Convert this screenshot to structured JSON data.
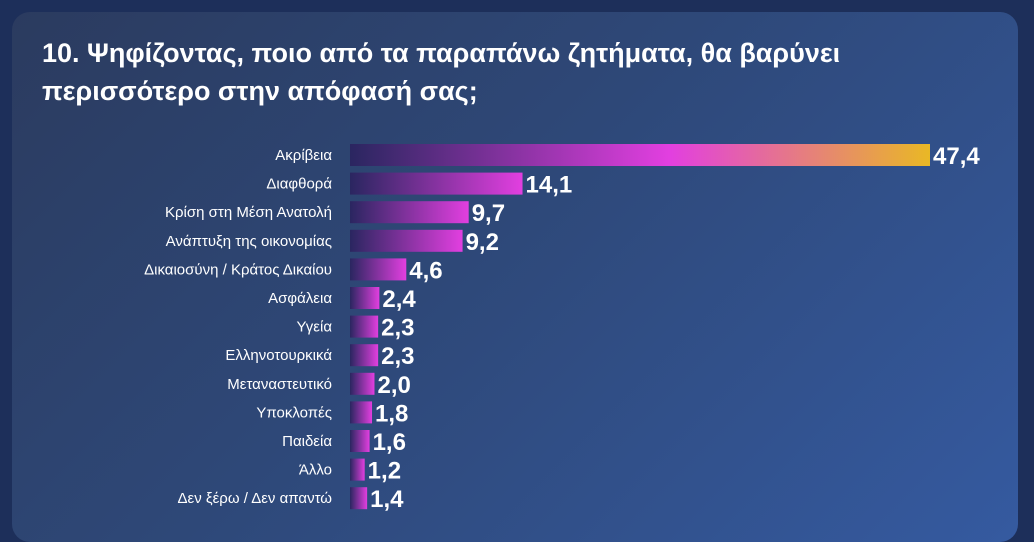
{
  "title": "10. Ψηφίζοντας, ποιο από τα παραπάνω ζητήματα, θα βαρύνει περισσότερο στην απόφασή σας;",
  "colors": {
    "bar_start": "#2a2660",
    "bar_end": "#e23fe0",
    "top_bar_mid": "#e23fe0",
    "top_bar_end": "#e9b825",
    "text": "#ffffff"
  },
  "chart_data": {
    "type": "bar",
    "orientation": "horizontal",
    "title": "10. Ψηφίζοντας, ποιο από τα παραπάνω ζητήματα, θα βαρύνει περισσότερο στην απόφασή σας;",
    "categories": [
      "Ακρίβεια",
      "Διαφθορά",
      "Κρίση στη Μέση Ανατολή",
      "Ανάπτυξη της οικονομίας",
      "Δικαιοσύνη / Κράτος Δικαίου",
      "Ασφάλεια",
      "Υγεία",
      "Ελληνοτουρκικά",
      "Μεταναστευτικό",
      "Υποκλοπές",
      "Παιδεία",
      "Άλλο",
      "Δεν ξέρω / Δεν απαντώ"
    ],
    "values": [
      47.4,
      14.1,
      9.7,
      9.2,
      4.6,
      2.4,
      2.3,
      2.3,
      2.0,
      1.8,
      1.6,
      1.2,
      1.4
    ],
    "value_labels": [
      "47,4",
      "14,1",
      "9,7",
      "9,2",
      "4,6",
      "2,4",
      "2,3",
      "2,3",
      "2,0",
      "1,8",
      "1,6",
      "1,2",
      "1,4"
    ],
    "xlim": [
      0,
      47.4
    ],
    "grid": false,
    "legend": "none"
  }
}
